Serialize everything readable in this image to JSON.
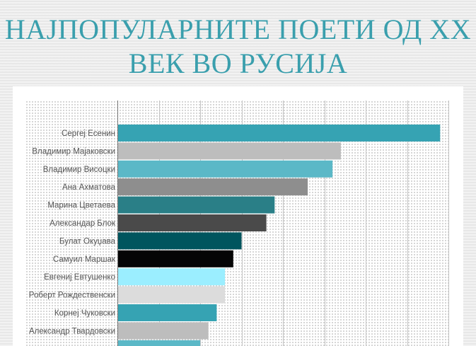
{
  "title": {
    "line1": "НАЈПОПУЛАРНИТЕ ПОЕТИ ОД XX",
    "line2": "ВЕК ВО РУСИЈА",
    "color": "#3a9fad"
  },
  "chart_data": {
    "type": "bar",
    "orientation": "horizontal",
    "title": "НАЈПОПУЛАРНИТЕ ПОЕТИ ОД XX ВЕК ВО РУСИЈА",
    "xlabel": "",
    "ylabel": "",
    "grid": true,
    "legend": "none",
    "xlim": [
      0,
      40
    ],
    "categories": [
      "Сергеј Есенин",
      "Владимир Мајаковски",
      "Владимир Висоцки",
      "Ана Ахматова",
      "Марина Цветаева",
      "Александар Блок",
      "Булат Окуџава",
      "Самуил Маршак",
      "Евгениј Евтушенко",
      "Роберт Рождественски",
      "Корнеј Чуковски",
      "Александр Твардовски",
      ""
    ],
    "values": [
      39,
      27,
      26,
      23,
      19,
      18,
      15,
      14,
      13,
      13,
      12,
      11,
      10
    ],
    "colors": [
      "#36a3b3",
      "#bdbdbd",
      "#5bb8c7",
      "#8e8e8e",
      "#2a7f87",
      "#4a4a4a",
      "#00555e",
      "#050505",
      "#9beeff",
      "#dcdcdc",
      "#36a3b3",
      "#bdbdbd",
      "#5bb8c7"
    ]
  }
}
